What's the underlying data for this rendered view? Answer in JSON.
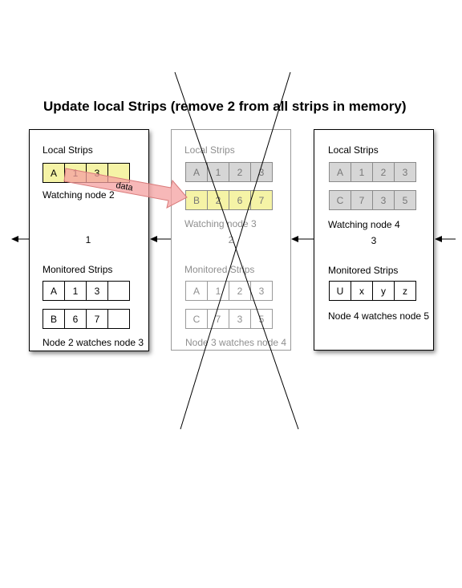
{
  "title": "Update local Strips (remove 2 from all strips in memory)",
  "nodes": {
    "left": {
      "local_label": "Local Strips",
      "local_strip": [
        "A",
        "1",
        "3",
        ""
      ],
      "watching": "Watching node 2",
      "number": "1",
      "monitored_label": "Monitored Strips",
      "monitored_strip_1": [
        "A",
        "1",
        "3",
        ""
      ],
      "monitored_strip_2": [
        "B",
        "6",
        "7",
        ""
      ],
      "footer": "Node 2 watches node 3"
    },
    "middle": {
      "local_label": "Local Strips",
      "local_strip_1": [
        "A",
        "1",
        "2",
        "3"
      ],
      "local_strip_2": [
        "B",
        "2",
        "6",
        "7"
      ],
      "watching": "Watching node 3",
      "number": "2",
      "monitored_label": "Monitored Strips",
      "monitored_strip_1": [
        "A",
        "1",
        "2",
        "3"
      ],
      "monitored_strip_2": [
        "C",
        "7",
        "3",
        "5"
      ],
      "footer": "Node 3 watches node 4"
    },
    "right": {
      "local_label": "Local Strips",
      "local_strip_1": [
        "A",
        "1",
        "2",
        "3"
      ],
      "local_strip_2": [
        "C",
        "7",
        "3",
        "5"
      ],
      "watching": "Watching node 4",
      "number": "3",
      "monitored_label": "Monitored Strips",
      "monitored_strip_1": [
        "U",
        "x",
        "y",
        "z"
      ],
      "footer": "Node 4 watches node 5"
    }
  },
  "arrow_label": "data",
  "colors": {
    "strip_highlight": "#f5f3a6",
    "strip_grey": "#d6d6d6",
    "data_arrow": "#f4a0a0"
  }
}
